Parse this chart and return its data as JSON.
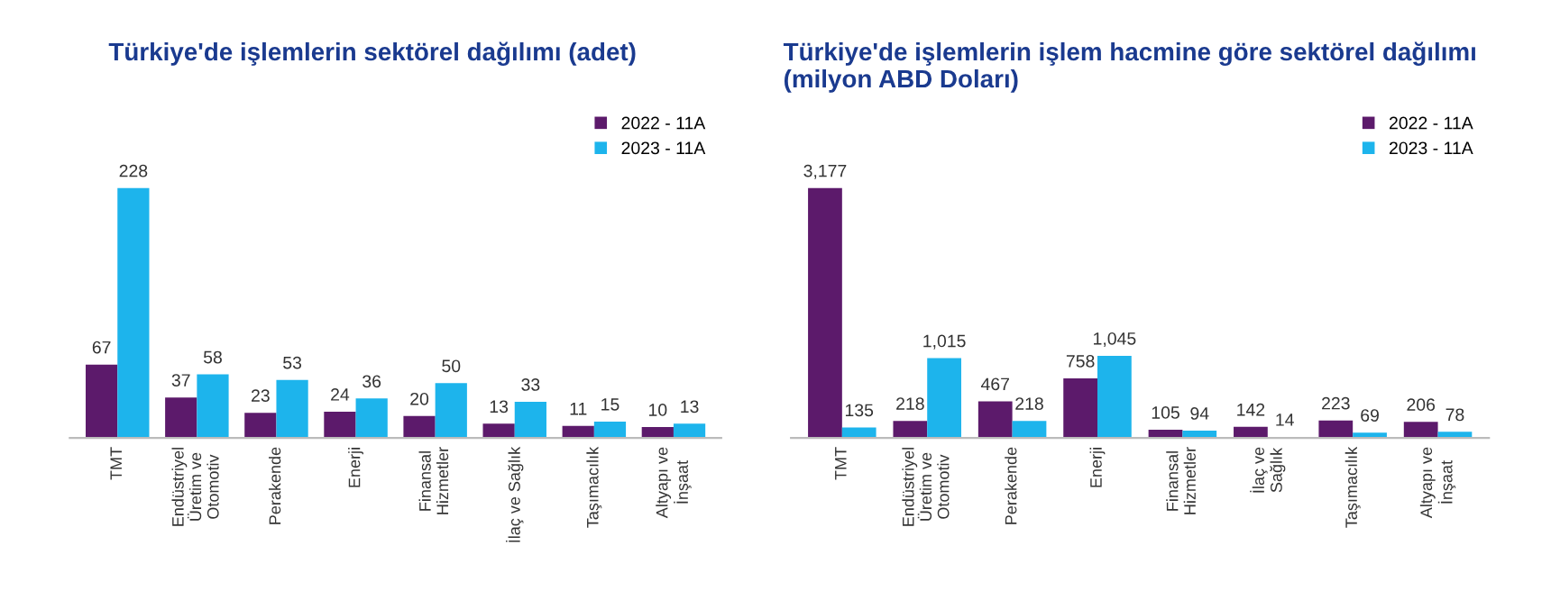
{
  "chart_data": [
    {
      "type": "bar",
      "title": "Türkiye'de işlemlerin sektörel dağılımı (adet)",
      "categories": [
        "TMT",
        "Endüstriyel\nÜretim ve\nOtomotiv",
        "Perakende",
        "Enerji",
        "Finansal\nHizmetler",
        "İlaç ve Sağlık",
        "Taşımacılık",
        "Altyapı ve\nİnşaat"
      ],
      "series": [
        {
          "name": "2022 - 11A",
          "color": "#5c1a6b",
          "values": [
            67,
            37,
            23,
            24,
            20,
            13,
            11,
            10
          ]
        },
        {
          "name": "2023 - 11A",
          "color": "#1db4ec",
          "values": [
            228,
            58,
            53,
            36,
            50,
            33,
            15,
            13
          ]
        }
      ],
      "data_labels": true,
      "legend": "top right",
      "grid": false
    },
    {
      "type": "bar",
      "title": "Türkiye'de işlemlerin işlem hacmine göre sektörel dağılımı\n(milyon ABD Doları)",
      "categories": [
        "TMT",
        "Endüstriyel\nÜretim ve\nOtomotiv",
        "Perakende",
        "Enerji",
        "Finansal\nHizmetler",
        "İlaç ve\nSağlık",
        "Taşımacılık",
        "Altyapı ve\nİnşaat"
      ],
      "series": [
        {
          "name": "2022 - 11A",
          "color": "#5c1a6b",
          "values": [
            3177,
            218,
            467,
            758,
            105,
            142,
            223,
            206
          ],
          "value_labels": [
            "3,177",
            "218",
            "467",
            "758",
            "105",
            "142",
            "223",
            "206"
          ]
        },
        {
          "name": "2023 - 11A",
          "color": "#1db4ec",
          "values": [
            135,
            1015,
            218,
            1045,
            94,
            14,
            69,
            78
          ],
          "value_labels": [
            "135",
            "1,015",
            "218",
            "1,045",
            "94",
            "14",
            "69",
            "78"
          ]
        }
      ],
      "legend": "top right",
      "grid": false
    }
  ]
}
